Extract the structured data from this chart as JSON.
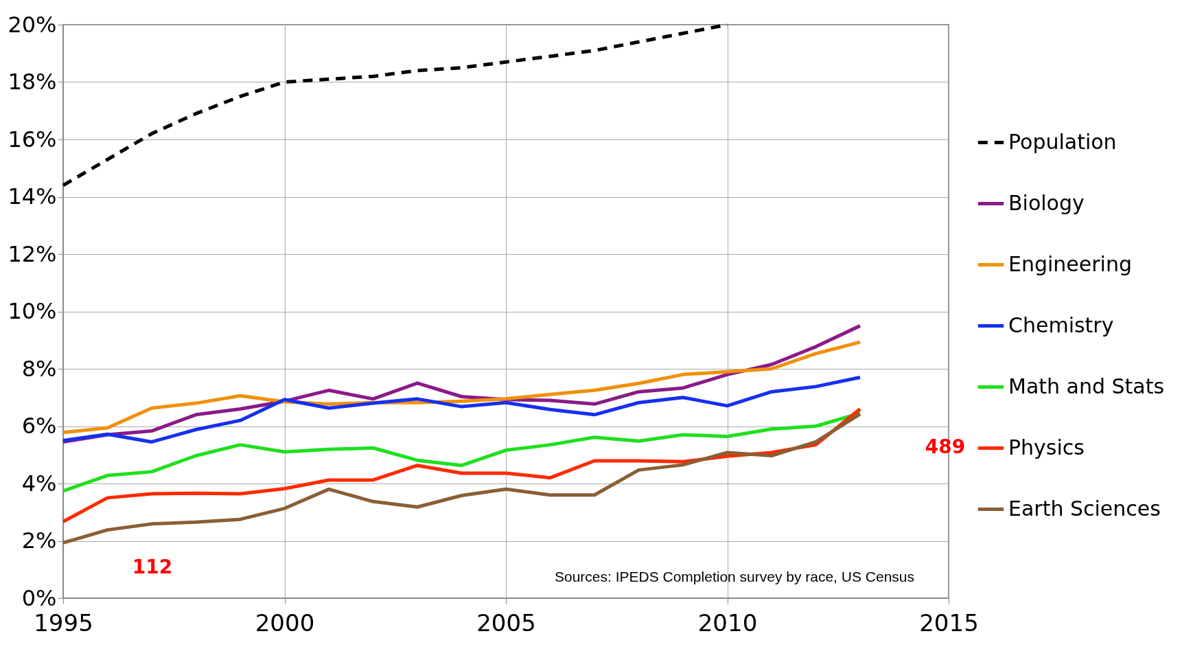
{
  "chart_data": {
    "type": "line",
    "x": [
      1995,
      1996,
      1997,
      1998,
      1999,
      2000,
      2001,
      2002,
      2003,
      2004,
      2005,
      2006,
      2007,
      2008,
      2009,
      2010,
      2011,
      2012,
      2013
    ],
    "series": [
      {
        "name": "Population",
        "color": "#000000",
        "line_style": "dashed",
        "x": [
          1995,
          1996,
          1997,
          1998,
          1999,
          2000,
          2001,
          2002,
          2003,
          2004,
          2005,
          2006,
          2007,
          2008,
          2009,
          2010
        ],
        "values": [
          14.4,
          15.3,
          16.2,
          16.9,
          17.5,
          18.0,
          18.1,
          18.2,
          18.4,
          18.5,
          18.7,
          18.9,
          19.1,
          19.4,
          19.7,
          20.0
        ]
      },
      {
        "name": "Biology",
        "color": "#8b1a89",
        "values": [
          5.45,
          5.7,
          5.83,
          6.4,
          6.6,
          6.87,
          7.25,
          6.95,
          7.5,
          7.03,
          6.93,
          6.9,
          6.77,
          7.2,
          7.33,
          7.8,
          8.15,
          8.77,
          9.5
        ]
      },
      {
        "name": "Engineering",
        "color": "#f0900a",
        "values": [
          5.78,
          5.94,
          6.63,
          6.8,
          7.06,
          6.85,
          6.77,
          6.82,
          6.82,
          6.87,
          6.95,
          7.11,
          7.25,
          7.49,
          7.8,
          7.9,
          8.0,
          8.53,
          8.93
        ]
      },
      {
        "name": "Chemistry",
        "color": "#1530f0",
        "values": [
          5.5,
          5.72,
          5.45,
          5.88,
          6.2,
          6.93,
          6.63,
          6.8,
          6.95,
          6.68,
          6.82,
          6.58,
          6.4,
          6.82,
          7.0,
          6.71,
          7.2,
          7.38,
          7.7
        ]
      },
      {
        "name": "Math and Stats",
        "color": "#1ee01e",
        "values": [
          3.74,
          4.28,
          4.41,
          4.97,
          5.35,
          5.1,
          5.19,
          5.24,
          4.81,
          4.63,
          5.16,
          5.35,
          5.61,
          5.48,
          5.7,
          5.64,
          5.9,
          6.0,
          6.45
        ]
      },
      {
        "name": "Physics",
        "color": "#ff2a00",
        "values": [
          2.67,
          3.5,
          3.64,
          3.66,
          3.64,
          3.82,
          4.12,
          4.12,
          4.63,
          4.36,
          4.36,
          4.2,
          4.79,
          4.79,
          4.76,
          4.95,
          5.08,
          5.35,
          6.6
        ]
      },
      {
        "name": "Earth Sciences",
        "color": "#8b5e34",
        "values": [
          1.93,
          2.38,
          2.59,
          2.65,
          2.75,
          3.13,
          3.8,
          3.37,
          3.18,
          3.58,
          3.8,
          3.6,
          3.6,
          4.47,
          4.65,
          5.08,
          4.97,
          5.45,
          6.42
        ]
      }
    ],
    "xlim": [
      1995,
      2015
    ],
    "xticks": [
      1995,
      2000,
      2005,
      2010,
      2015
    ],
    "ylim": [
      0,
      20
    ],
    "yticks": [
      {
        "value": 0,
        "label": "0%"
      },
      {
        "value": 2,
        "label": "2%"
      },
      {
        "value": 4,
        "label": "4%"
      },
      {
        "value": 6,
        "label": "6%"
      },
      {
        "value": 8,
        "label": "8%"
      },
      {
        "value": 10,
        "label": "10%"
      },
      {
        "value": 12,
        "label": "12%"
      },
      {
        "value": 14,
        "label": "14%"
      },
      {
        "value": 16,
        "label": "16%"
      },
      {
        "value": 18,
        "label": "18%"
      },
      {
        "value": 20,
        "label": "20%"
      }
    ],
    "annotations": [
      "112",
      "489",
      "Sources: IPEDS Completion survey by race, US Census"
    ],
    "grid": true,
    "legend": "right",
    "line_style": "solid",
    "marker": "none"
  }
}
